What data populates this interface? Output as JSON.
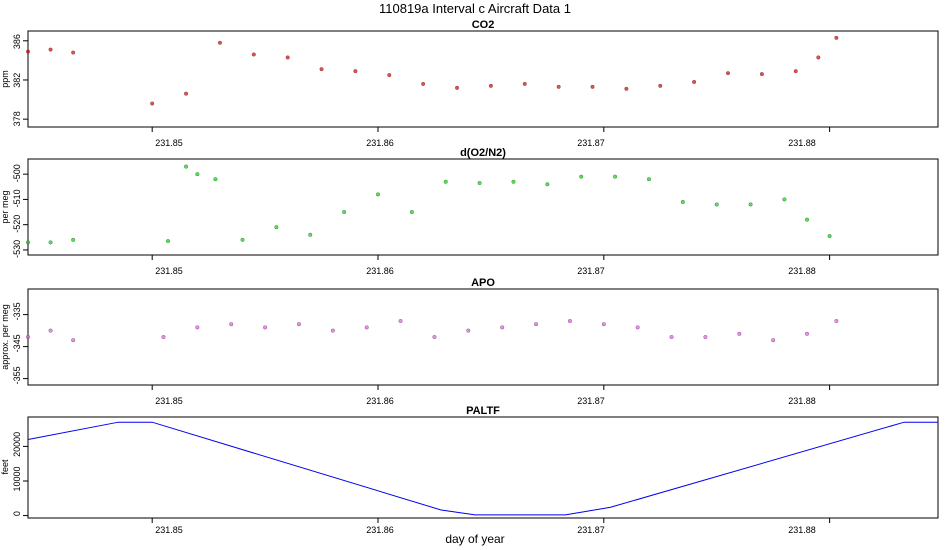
{
  "title": "110819a   Interval c Aircraft Data 1",
  "xlabel": "day of year",
  "chart_data": [
    {
      "type": "scatter",
      "title": "CO2",
      "ylabel": "ppm",
      "xlim": [
        231.8445,
        231.8848
      ],
      "ylim": [
        377.2,
        387.0
      ],
      "xticks": [
        "231.85",
        "231.86",
        "231.87",
        "231.88"
      ],
      "yticks": [
        "378",
        "382",
        "386"
      ],
      "color": "#e00000",
      "series": [
        {
          "x": [
            231.8445,
            231.8455,
            231.8465,
            231.85,
            231.8515,
            231.853,
            231.8545,
            231.856,
            231.8575,
            231.859,
            231.8605,
            231.862,
            231.8635,
            231.865,
            231.8665,
            231.868,
            231.8695,
            231.871,
            231.8725,
            231.874,
            231.8755,
            231.877,
            231.8785,
            231.8795,
            231.8803
          ],
          "y": [
            384.9,
            385.1,
            384.8,
            379.6,
            380.6,
            385.8,
            384.6,
            384.3,
            383.1,
            382.9,
            382.5,
            381.6,
            381.2,
            381.4,
            381.6,
            381.3,
            381.3,
            381.1,
            381.4,
            381.8,
            382.7,
            382.6,
            382.9,
            384.3,
            386.3
          ]
        }
      ]
    },
    {
      "type": "scatter",
      "title": "d(O2/N2)",
      "ylabel": "per meg",
      "xlim": [
        231.8445,
        231.8848
      ],
      "ylim": [
        -532,
        -494
      ],
      "xticks": [
        "231.85",
        "231.86",
        "231.87",
        "231.88"
      ],
      "yticks": [
        "-530",
        "-520",
        "-510",
        "-500"
      ],
      "color": "#00e000",
      "series": [
        {
          "x": [
            231.8445,
            231.8455,
            231.8465,
            231.8507,
            231.8515,
            231.852,
            231.8528,
            231.854,
            231.8555,
            231.857,
            231.8585,
            231.86,
            231.8615,
            231.863,
            231.8645,
            231.866,
            231.8675,
            231.869,
            231.8705,
            231.872,
            231.8735,
            231.875,
            231.8765,
            231.878,
            231.879,
            231.88
          ],
          "y": [
            -527.0,
            -527.0,
            -526.0,
            -526.5,
            -497.0,
            -500.0,
            -502.0,
            -526.0,
            -521.0,
            -524.0,
            -515.0,
            -508.0,
            -515.0,
            -503.0,
            -503.5,
            -503.0,
            -504.0,
            -501.0,
            -501.0,
            -502.0,
            -511.0,
            -512.0,
            -512.0,
            -510.0,
            -518.0,
            -524.5
          ]
        }
      ]
    },
    {
      "type": "scatter",
      "title": "APO",
      "ylabel": "approx. per meg",
      "xlim": [
        231.8445,
        231.8848
      ],
      "ylim": [
        -357,
        -327
      ],
      "xticks": [
        "231.85",
        "231.86",
        "231.87",
        "231.88"
      ],
      "yticks": [
        "-355",
        "-345",
        "-335"
      ],
      "color": "#ee55ee",
      "series": [
        {
          "x": [
            231.8445,
            231.8455,
            231.8465,
            231.8505,
            231.852,
            231.8535,
            231.855,
            231.8565,
            231.858,
            231.8595,
            231.861,
            231.8625,
            231.864,
            231.8655,
            231.867,
            231.8685,
            231.87,
            231.8715,
            231.873,
            231.8745,
            231.876,
            231.8775,
            231.879,
            231.8803
          ],
          "y": [
            -342.0,
            -340.0,
            -343.0,
            -342.0,
            -339.0,
            -338.0,
            -339.0,
            -338.0,
            -340.0,
            -339.0,
            -337.0,
            -342.0,
            -340.0,
            -339.0,
            -338.0,
            -337.0,
            -338.0,
            -339.0,
            -342.0,
            -342.0,
            -341.0,
            -343.0,
            -341.0,
            -337.0
          ]
        }
      ]
    },
    {
      "type": "line",
      "title": "PALTF",
      "ylabel": "feet",
      "xlim": [
        231.8445,
        231.8848
      ],
      "ylim": [
        -700,
        28500
      ],
      "xticks": [
        "231.85",
        "231.86",
        "231.87",
        "231.88"
      ],
      "yticks": [
        "0",
        "10000",
        "20000"
      ],
      "color": "#0000ee",
      "series": [
        {
          "x": [
            231.8445,
            231.8485,
            231.85,
            231.8628,
            231.8643,
            231.8683,
            231.8703,
            231.8833,
            231.8848
          ],
          "y": [
            22000,
            27000,
            27000,
            1600,
            200,
            200,
            2400,
            27000,
            27000
          ]
        }
      ]
    }
  ]
}
